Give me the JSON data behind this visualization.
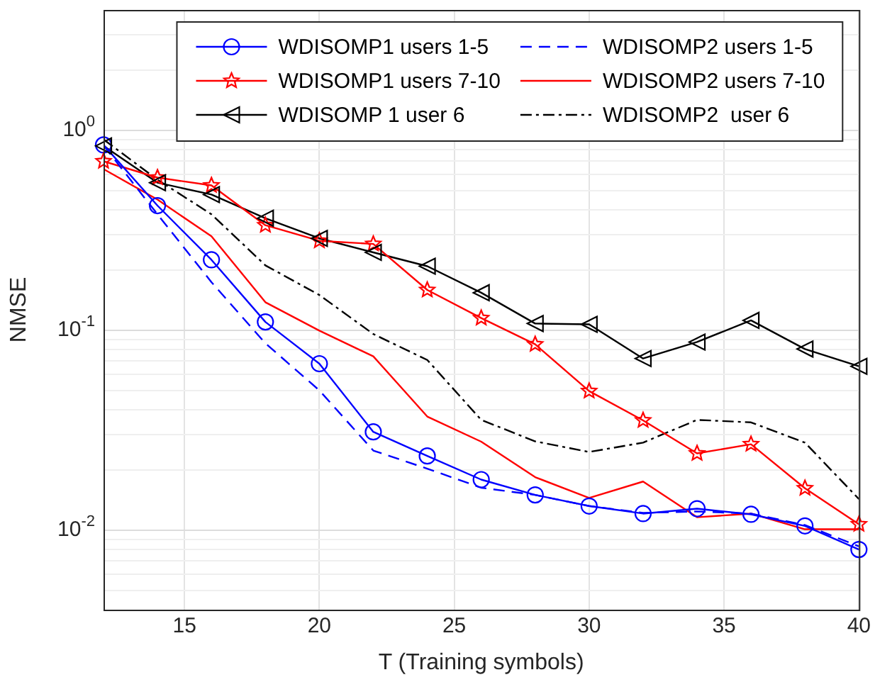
{
  "chart_data": {
    "type": "line",
    "xlabel": "T (Training symbols)",
    "ylabel": "NMSE",
    "x": [
      12,
      14,
      16,
      18,
      20,
      22,
      24,
      26,
      28,
      30,
      32,
      34,
      36,
      38,
      40
    ],
    "series": [
      {
        "name": "WDISOMP1 users 1-5",
        "color": "#0000ff",
        "marker": "circle",
        "line_style": "solid",
        "values": [
          0.845,
          0.42,
          0.225,
          0.11,
          0.068,
          0.031,
          0.0235,
          0.0179,
          0.015,
          0.0132,
          0.0121,
          0.0128,
          0.012,
          0.0105,
          0.008
        ]
      },
      {
        "name": "WDISOMP2 users 1-5",
        "color": "#0000ff",
        "marker": "none",
        "line_style": "dashed",
        "values": [
          0.84,
          0.38,
          0.174,
          0.086,
          0.05,
          0.025,
          0.0203,
          0.0163,
          0.015,
          0.0132,
          0.0122,
          0.0124,
          0.0121,
          0.0106,
          0.0083
        ]
      },
      {
        "name": "WDISOMP1 users 7-10",
        "color": "#ff0000",
        "marker": "star",
        "line_style": "solid",
        "values": [
          0.7,
          0.58,
          0.53,
          0.335,
          0.28,
          0.27,
          0.159,
          0.115,
          0.085,
          0.0496,
          0.0354,
          0.0242,
          0.0269,
          0.0162,
          0.0107
        ]
      },
      {
        "name": "WDISOMP2 users 7-10",
        "color": "#ff0000",
        "marker": "none",
        "line_style": "solid",
        "values": [
          0.64,
          0.45,
          0.295,
          0.138,
          0.0995,
          0.074,
          0.037,
          0.0277,
          0.0184,
          0.0145,
          0.0175,
          0.0116,
          0.0121,
          0.0101,
          0.0101
        ]
      },
      {
        "name": "WDISOMP 1 user 6",
        "color": "#000000",
        "marker": "triangle",
        "line_style": "solid",
        "values": [
          0.835,
          0.547,
          0.477,
          0.363,
          0.288,
          0.245,
          0.209,
          0.154,
          0.108,
          0.107,
          0.0722,
          0.0873,
          0.112,
          0.0805,
          0.066
        ]
      },
      {
        "name": "WDISOMP2  user 6",
        "color": "#000000",
        "marker": "none",
        "line_style": "dashdot",
        "values": [
          0.9,
          0.566,
          0.38,
          0.211,
          0.15,
          0.0957,
          0.071,
          0.0356,
          0.0278,
          0.0246,
          0.0274,
          0.0356,
          0.0346,
          0.0274,
          0.0143
        ]
      }
    ],
    "xlim": [
      12,
      40
    ],
    "xticks": [
      15,
      20,
      25,
      30,
      35,
      40
    ],
    "ylim": [
      0.004,
      4
    ],
    "log": "y",
    "yticks": [
      {
        "value": 0.005,
        "label": null
      },
      {
        "value": 0.006,
        "label": null
      },
      {
        "value": 0.007,
        "label": null
      },
      {
        "value": 0.008,
        "label": null
      },
      {
        "value": 0.009,
        "label": null
      },
      {
        "value": 0.01,
        "label": "10$^{-2}$"
      },
      {
        "value": 0.02,
        "label": null
      },
      {
        "value": 0.03,
        "label": null
      },
      {
        "value": 0.04,
        "label": null
      },
      {
        "value": 0.05,
        "label": null
      },
      {
        "value": 0.06,
        "label": null
      },
      {
        "value": 0.07,
        "label": null
      },
      {
        "value": 0.08,
        "label": null
      },
      {
        "value": 0.09,
        "label": null
      },
      {
        "value": 0.1,
        "label": "10$^{-1}$"
      },
      {
        "value": 0.2,
        "label": null
      },
      {
        "value": 0.3,
        "label": null
      },
      {
        "value": 0.4,
        "label": null
      },
      {
        "value": 0.5,
        "label": null
      },
      {
        "value": 0.6,
        "label": null
      },
      {
        "value": 0.7,
        "label": null
      },
      {
        "value": 0.8,
        "label": null
      },
      {
        "value": 0.9,
        "label": null
      },
      {
        "value": 1,
        "label": "10$^{0}$"
      },
      {
        "value": 2,
        "label": null
      },
      {
        "value": 3,
        "label": null
      }
    ],
    "grid": true,
    "legend": "top right"
  }
}
